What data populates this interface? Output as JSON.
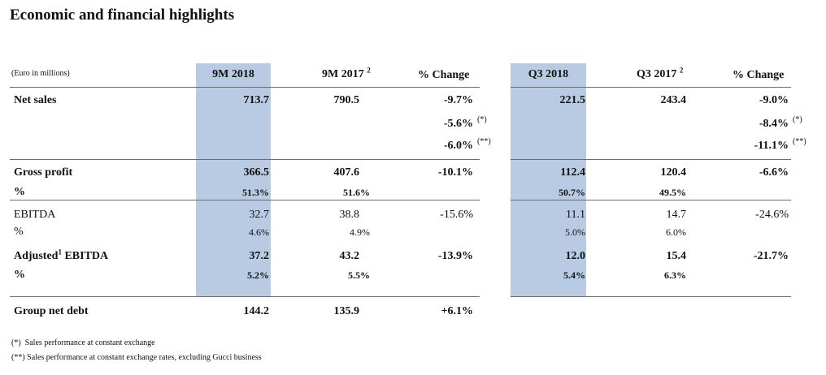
{
  "title": "Economic and financial highlights",
  "unit_label": "(Euro in millions)",
  "columns": {
    "c1": "9M 2018",
    "c2": "9M 2017",
    "c2_sup": "2",
    "c3": "% Change",
    "c4": "Q3 2018",
    "c5": "Q3 2017",
    "c5_sup": "2",
    "c6": "% Change"
  },
  "rows": {
    "net_sales": {
      "label": "Net sales",
      "c1": "713.7",
      "c2": "790.5",
      "c3": "-9.7%",
      "c4": "221.5",
      "c5": "243.4",
      "c6": "-9.0%"
    },
    "net_sales_const": {
      "c3": "-5.6%",
      "c3_note": "(*)",
      "c6": "-8.4%",
      "c6_note": "(*)"
    },
    "net_sales_ex_gucci": {
      "c3": "-6.0%",
      "c3_note": "(**)",
      "c6": "-11.1%",
      "c6_note": "(**)"
    },
    "gross_profit": {
      "label": "Gross profit",
      "c1": "366.5",
      "c2": "407.6",
      "c3": "-10.1%",
      "c4": "112.4",
      "c5": "120.4",
      "c6": "-6.6%"
    },
    "gross_profit_pct": {
      "label": "%",
      "c1": "51.3%",
      "c2": "51.6%",
      "c4": "50.7%",
      "c5": "49.5%"
    },
    "ebitda": {
      "label": "EBITDA",
      "c1": "32.7",
      "c2": "38.8",
      "c3": "-15.6%",
      "c4": "11.1",
      "c5": "14.7",
      "c6": "-24.6%"
    },
    "ebitda_pct": {
      "label": "%",
      "c1": "4.6%",
      "c2": "4.9%",
      "c4": "5.0%",
      "c5": "6.0%"
    },
    "adj_ebitda": {
      "label_a": "Adjusted",
      "label_sup": "1",
      "label_b": " EBITDA",
      "c1": "37.2",
      "c2": "43.2",
      "c3": "-13.9%",
      "c4": "12.0",
      "c5": "15.4",
      "c6": "-21.7%"
    },
    "adj_ebitda_pct": {
      "label": "%",
      "c1": "5.2%",
      "c2": "5.5%",
      "c4": "5.4%",
      "c5": "6.3%"
    },
    "net_debt": {
      "label": "Group net debt",
      "c1": "144.2",
      "c2": "135.9",
      "c3": "+6.1%"
    }
  },
  "footnotes": {
    "f1_mark": "(*)",
    "f1_text": "Sales performance at constant exchange",
    "f2_mark": "(**)",
    "f2_text": "Sales performance at constant exchange rates, excluding Gucci business"
  },
  "colors": {
    "highlight": "#b8cbe2",
    "rule": "#6b6b6b"
  }
}
